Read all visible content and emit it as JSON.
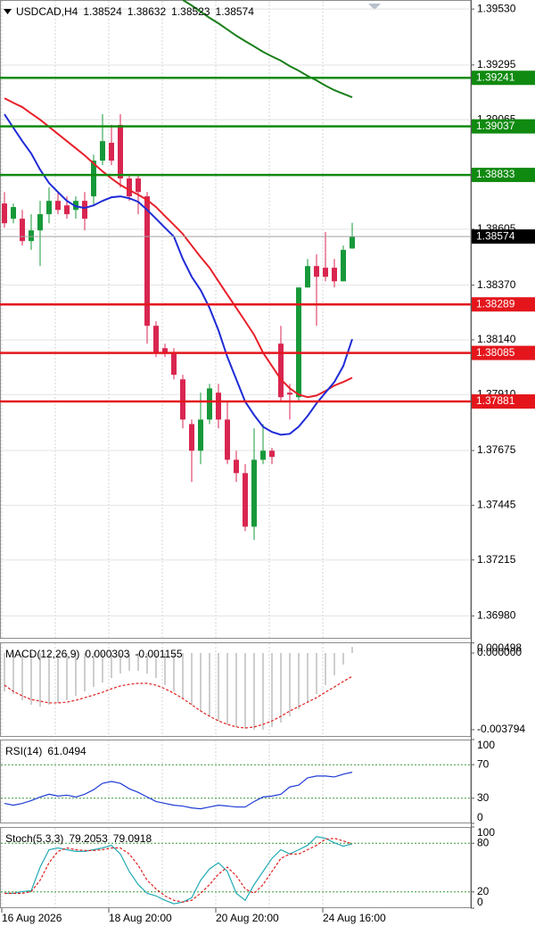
{
  "chart_data": [
    {
      "type": "candlestick",
      "title": "USDCAD,H4",
      "categories": [
        "16 Aug 2026",
        null,
        null,
        null,
        null,
        null,
        null,
        null,
        null,
        null,
        null,
        null,
        "18 Aug 20:00",
        null,
        null,
        null,
        null,
        null,
        null,
        null,
        null,
        null,
        null,
        null,
        "20 Aug 20:00",
        null,
        null,
        null,
        null,
        null,
        null,
        null,
        null,
        null,
        null,
        null,
        "24 Aug 16:00",
        null,
        null,
        null
      ],
      "open": [
        1.38713,
        1.38649,
        1.38649,
        1.38555,
        1.386,
        1.38668,
        1.38724,
        1.38705,
        1.38686,
        1.38724,
        1.38743,
        1.38893,
        1.38968,
        1.39043,
        1.38818,
        1.38818,
        1.38743,
        1.38199,
        1.38105,
        1.38086,
        1.37974,
        1.37786,
        1.37674,
        1.37805,
        1.37918,
        1.37805,
        1.37636,
        1.3758,
        1.37355,
        1.37636,
        1.37674,
        1.38124,
        1.37918,
        1.37899,
        1.3836,
        1.3845,
        1.38443,
        1.38443,
        1.38386,
        1.38524
      ],
      "high": [
        1.38761,
        1.38713,
        1.38686,
        1.38668,
        1.38724,
        1.3878,
        1.38761,
        1.38743,
        1.38743,
        1.38761,
        1.38918,
        1.39088,
        1.39043,
        1.39088,
        1.38836,
        1.38836,
        1.38761,
        1.38218,
        1.38124,
        1.38105,
        1.37993,
        1.37805,
        1.37918,
        1.37955,
        1.37955,
        1.3788,
        1.37674,
        1.37618,
        1.37768,
        1.37786,
        1.37686,
        1.38199,
        1.37955,
        1.3836,
        1.3848,
        1.38499,
        1.38593,
        1.3848,
        1.38536,
        1.38632
      ],
      "low": [
        1.38611,
        1.3863,
        1.38536,
        1.38518,
        1.3845,
        1.3863,
        1.38668,
        1.38649,
        1.38649,
        1.386,
        1.38705,
        1.38874,
        1.38874,
        1.3878,
        1.38724,
        1.38668,
        1.38124,
        1.38068,
        1.38068,
        1.37974,
        1.37768,
        1.37543,
        1.37618,
        1.37786,
        1.37768,
        1.37618,
        1.37543,
        1.37336,
        1.37299,
        1.37618,
        1.37618,
        1.3788,
        1.37805,
        1.3788,
        1.3836,
        1.38199,
        1.38386,
        1.3836,
        1.38386,
        1.38523
      ],
      "close": [
        1.3863,
        1.38698,
        1.38555,
        1.386,
        1.38668,
        1.38724,
        1.38686,
        1.38668,
        1.38724,
        1.38649,
        1.38893,
        1.38975,
        1.38893,
        1.38818,
        1.38743,
        1.38761,
        1.38199,
        1.38086,
        1.38086,
        1.37993,
        1.37805,
        1.37674,
        1.37805,
        1.37936,
        1.37805,
        1.37636,
        1.3758,
        1.37355,
        1.37636,
        1.37674,
        1.37648,
        1.37899,
        1.3791,
        1.3836,
        1.3845,
        1.38405,
        1.38405,
        1.38386,
        1.38518,
        1.38574
      ],
      "up_color": "#17993a",
      "down_color": "#d92650",
      "series": [
        {
          "color": "#1a7f1a",
          "values": [
            null,
            null,
            null,
            null,
            null,
            null,
            null,
            null,
            null,
            null,
            null,
            null,
            null,
            null,
            null,
            null,
            null,
            null,
            null,
            null,
            1.39568,
            1.39545,
            1.39519,
            1.39493,
            1.3947,
            1.39444,
            1.39418,
            1.39395,
            1.39373,
            1.3935,
            1.39331,
            1.39313,
            1.3929,
            1.39271,
            1.39249,
            1.3923,
            1.39208,
            1.39189,
            1.39174,
            1.39159
          ]
        },
        {
          "color": "#e8202a",
          "values": [
            1.39155,
            1.39136,
            1.39118,
            1.39091,
            1.39065,
            1.39035,
            1.39005,
            1.38975,
            1.38945,
            1.38915,
            1.38881,
            1.38848,
            1.38818,
            1.38791,
            1.38769,
            1.3875,
            1.38728,
            1.38698,
            1.3866,
            1.38623,
            1.38585,
            1.38536,
            1.38488,
            1.38443,
            1.38386,
            1.3833,
            1.38274,
            1.38218,
            1.38161,
            1.38086,
            1.3803,
            1.37974,
            1.37936,
            1.3791,
            1.37899,
            1.37906,
            1.37925,
            1.37948,
            1.37963,
            1.37981
          ]
        },
        {
          "color": "#1f2bd6",
          "values": [
            1.39088,
            1.39031,
            1.38975,
            1.38923,
            1.38855,
            1.38799,
            1.38761,
            1.38724,
            1.38701,
            1.38694,
            1.38705,
            1.38724,
            1.38739,
            1.38743,
            1.38735,
            1.3872,
            1.38686,
            1.38649,
            1.38611,
            1.38574,
            1.3848,
            1.38405,
            1.38349,
            1.38274,
            1.3818,
            1.38068,
            1.37974,
            1.3788,
            1.37824,
            1.37775,
            1.37753,
            1.37741,
            1.37745,
            1.37775,
            1.3782,
            1.37873,
            1.37918,
            1.37963,
            1.3803,
            1.38143
          ]
        }
      ],
      "levels": [
        {
          "value": 1.39241,
          "color": "#108a10"
        },
        {
          "value": 1.39037,
          "color": "#108a10"
        },
        {
          "value": 1.38833,
          "color": "#108a10"
        },
        {
          "value": 1.38289,
          "color": "#e4161c"
        },
        {
          "value": 1.38085,
          "color": "#e4161c"
        },
        {
          "value": 1.37881,
          "color": "#e4161c"
        }
      ],
      "ylim": [
        1.36884,
        1.39568
      ],
      "yticks": [
        {
          "value": 1.3953,
          "label": "1.39530"
        },
        1.39295,
        1.39065,
        1.38835,
        1.38605,
        {
          "value": 1.3837,
          "label": "1.38370"
        },
        {
          "value": 1.3814,
          "label": "1.38140"
        },
        {
          "value": 1.3791,
          "label": "1.37910"
        },
        1.37675,
        1.37445,
        1.37215,
        {
          "value": 1.3698,
          "label": "1.36980"
        }
      ],
      "grid": true
    },
    {
      "type": "macd",
      "title": "MACD(12,26,9)",
      "series": [
        {
          "color": "#bdbdbd",
          "style": "histogram",
          "values": [
            -0.0019,
            -0.00203,
            -0.00234,
            -0.00256,
            -0.00265,
            -0.00256,
            -0.00247,
            -0.00234,
            -0.00212,
            -0.0019,
            -0.00168,
            -0.00146,
            -0.00124,
            -0.00102,
            -0.00088,
            -0.00088,
            -0.00102,
            -0.00124,
            -0.00159,
            -0.0019,
            -0.00225,
            -0.00256,
            -0.00287,
            -0.00313,
            -0.00336,
            -0.00353,
            -0.00366,
            -0.00375,
            -0.00379,
            -0.003794,
            -0.00366,
            -0.00344,
            -0.00313,
            -0.00278,
            -0.00243,
            -0.00203,
            -0.00159,
            -0.0011,
            -0.00057,
            0.000303
          ]
        },
        {
          "color": "#e02020",
          "style": "dashed",
          "values": [
            -0.00159,
            -0.0019,
            -0.00212,
            -0.0023,
            -0.00238,
            -0.00247,
            -0.00247,
            -0.00243,
            -0.00234,
            -0.00221,
            -0.00208,
            -0.00194,
            -0.00177,
            -0.00163,
            -0.00155,
            -0.0015,
            -0.0015,
            -0.00159,
            -0.00177,
            -0.00199,
            -0.00225,
            -0.00256,
            -0.00287,
            -0.00313,
            -0.00336,
            -0.00353,
            -0.00366,
            -0.00371,
            -0.00366,
            -0.00353,
            -0.00336,
            -0.00313,
            -0.00287,
            -0.00265,
            -0.00243,
            -0.00221,
            -0.00194,
            -0.00168,
            -0.00141,
            -0.001155
          ]
        }
      ],
      "ylim": [
        -0.00415,
        0.00053
      ],
      "yticks": [
        0.000498,
        {
          "value": 0,
          "label": "0.000000"
        },
        -0.003794
      ]
    },
    {
      "type": "line",
      "title": "RSI(14)",
      "series": [
        {
          "color": "#1f3bd6",
          "style": "solid",
          "values": [
            23.9,
            21.7,
            23.9,
            27.2,
            31.5,
            34.8,
            32.6,
            33.7,
            31.5,
            34.8,
            40.2,
            47.8,
            50,
            47.8,
            41.3,
            37,
            31.5,
            26.1,
            23.9,
            21.7,
            20.7,
            18.5,
            17.4,
            19.6,
            21.7,
            20.7,
            19.6,
            19.6,
            26.1,
            31.5,
            32.6,
            34.8,
            43.5,
            45.7,
            54.3,
            56.5,
            56.5,
            55.4,
            58.7,
            61.0494
          ]
        }
      ],
      "levels": [
        70,
        30
      ],
      "ylim": [
        0,
        100
      ],
      "yticks": [
        100,
        70,
        30,
        0
      ]
    },
    {
      "type": "line",
      "title": "Stoch(5,3,3)",
      "series": [
        {
          "color": "#22aab4",
          "style": "solid",
          "values": [
            18.3,
            18.3,
            20.4,
            21.5,
            50.5,
            72,
            74.2,
            72,
            69.9,
            69.9,
            72,
            74.2,
            77.4,
            66.7,
            45.2,
            29,
            18.3,
            15.1,
            9.7,
            5.4,
            7.5,
            12.9,
            34.4,
            48.4,
            55.9,
            45.2,
            18.3,
            9.7,
            29,
            45.2,
            61.3,
            72,
            66.7,
            72,
            77.4,
            88.2,
            86,
            80.6,
            76.3,
            79.2053
          ]
        },
        {
          "color": "#e02020",
          "style": "dashed",
          "values": [
            18.3,
            18.3,
            18.3,
            20.4,
            34.4,
            55.9,
            69.9,
            74.2,
            72,
            71,
            71,
            72,
            74.2,
            74.2,
            66.7,
            52.7,
            34.4,
            23.7,
            15.1,
            9.7,
            7.5,
            9.7,
            18.3,
            29,
            41.9,
            50.5,
            39.8,
            23.7,
            18.3,
            29,
            45.2,
            61.3,
            66.7,
            66.7,
            72,
            77.4,
            84.9,
            86,
            82.8,
            79.0918
          ]
        }
      ],
      "levels": [
        80,
        20
      ],
      "ylim": [
        0,
        100
      ],
      "yticks": [
        100,
        80,
        20,
        0
      ]
    }
  ]
}
